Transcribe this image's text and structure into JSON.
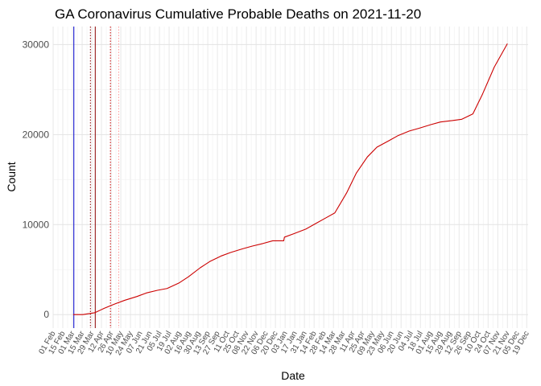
{
  "chart_data": {
    "type": "line",
    "title": "GA Coronavirus Cumulative Probable Deaths on 2021-11-20",
    "xlabel": "Date",
    "ylabel": "Count",
    "x_range": [
      "2020-02-01",
      "2021-12-20"
    ],
    "ylim": [
      -1500,
      32000
    ],
    "y_ticks": [
      0,
      10000,
      20000,
      30000
    ],
    "x_tick_labels": [
      "01 Feb",
      "15 Feb",
      "01 Mar",
      "15 Mar",
      "29 Mar",
      "12 Apr",
      "26 Apr",
      "10 May",
      "24 May",
      "07 Jun",
      "21 Jun",
      "05 Jul",
      "19 Jul",
      "02 Aug",
      "16 Aug",
      "30 Aug",
      "13 Sep",
      "27 Sep",
      "11 Oct",
      "25 Oct",
      "08 Nov",
      "22 Nov",
      "06 Dec",
      "20 Dec",
      "03 Jan",
      "17 Jan",
      "31 Jan",
      "14 Feb",
      "28 Feb",
      "14 Mar",
      "28 Mar",
      "11 Apr",
      "25 Apr",
      "09 May",
      "23 May",
      "06 Jun",
      "20 Jun",
      "04 Jul",
      "18 Jul",
      "01 Aug",
      "15 Aug",
      "29 Aug",
      "12 Sep",
      "26 Sep",
      "10 Oct",
      "24 Oct",
      "07 Nov",
      "21 Nov",
      "05 Dec",
      "19 Dec"
    ],
    "grid": true,
    "series": [
      {
        "color": "#cc0000",
        "x": [
          "2020-03-01",
          "2020-03-15",
          "2020-04-01",
          "2020-04-15",
          "2020-05-01",
          "2020-05-15",
          "2020-06-01",
          "2020-06-15",
          "2020-07-01",
          "2020-07-15",
          "2020-08-01",
          "2020-08-15",
          "2020-09-01",
          "2020-09-15",
          "2020-10-01",
          "2020-10-15",
          "2020-11-01",
          "2020-11-15",
          "2020-12-01",
          "2020-12-15",
          "2020-12-31",
          "2021-01-01",
          "2021-01-15",
          "2021-02-01",
          "2021-02-15",
          "2021-03-01",
          "2021-03-15",
          "2021-04-01",
          "2021-04-15",
          "2021-05-01",
          "2021-05-15",
          "2021-06-01",
          "2021-06-15",
          "2021-07-01",
          "2021-07-15",
          "2021-08-01",
          "2021-08-15",
          "2021-09-01",
          "2021-09-15",
          "2021-10-01",
          "2021-10-15",
          "2021-11-01",
          "2021-11-20"
        ],
        "y": [
          0,
          0,
          200,
          700,
          1200,
          1600,
          2000,
          2400,
          2700,
          2900,
          3500,
          4200,
          5200,
          5900,
          6500,
          6900,
          7300,
          7600,
          7900,
          8200,
          8200,
          8600,
          9000,
          9500,
          10100,
          10700,
          11300,
          13500,
          15700,
          17500,
          18600,
          19300,
          19900,
          20400,
          20700,
          21100,
          21400,
          21550,
          21700,
          22300,
          24500,
          27500,
          30100
        ]
      }
    ],
    "vertical_lines": [
      {
        "x": "2020-03-02",
        "color": "#0000cc",
        "style": "solid"
      },
      {
        "x": "2020-03-26",
        "color": "#8b0000",
        "style": "dotted"
      },
      {
        "x": "2020-04-02",
        "color": "#8b0000",
        "style": "solid"
      },
      {
        "x": "2020-04-24",
        "color": "#cc0000",
        "style": "dotted"
      },
      {
        "x": "2020-05-06",
        "color": "#ff9999",
        "style": "dotted"
      }
    ]
  }
}
